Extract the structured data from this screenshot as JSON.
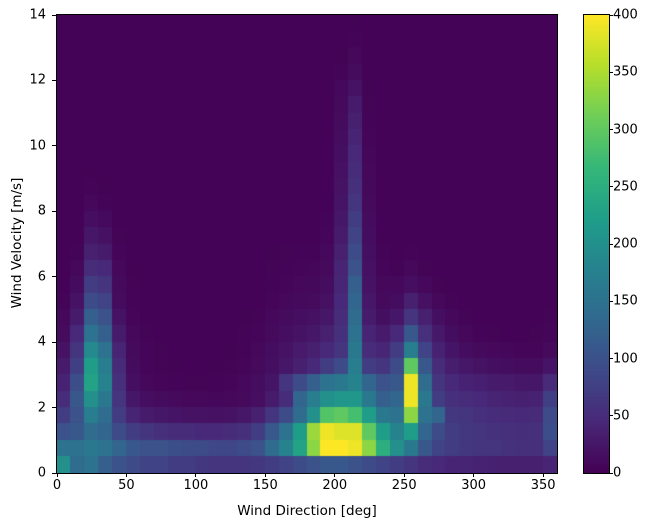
{
  "chart_data": {
    "type": "heatmap",
    "title": "",
    "xlabel": "Wind Direction [deg]",
    "ylabel": "Wind Velocity [m/s]",
    "xlim": [
      0,
      360
    ],
    "ylim": [
      0,
      14
    ],
    "xticks": [
      0,
      50,
      100,
      150,
      200,
      250,
      300,
      350
    ],
    "yticks": [
      0,
      2,
      4,
      6,
      8,
      10,
      12,
      14
    ],
    "grid_on": false,
    "colormap": "viridis",
    "colormap_stops": [
      "#440154",
      "#482878",
      "#3e4a89",
      "#31688e",
      "#26828e",
      "#1f9e89",
      "#35b779",
      "#6ece58",
      "#b5de2b",
      "#fde725"
    ],
    "colorbar": {
      "vmin": 0,
      "vmax": 400,
      "ticks": [
        0,
        50,
        100,
        150,
        200,
        250,
        300,
        350,
        400
      ],
      "position": "right"
    },
    "x_bin_width_deg": 10,
    "y_bin_height_ms": 0.5,
    "counts_rows_top_to_bottom": [
      [
        2,
        2,
        2,
        2,
        2,
        2,
        2,
        2,
        2,
        2,
        2,
        2,
        2,
        2,
        2,
        2,
        2,
        2,
        2,
        2,
        2,
        3,
        2,
        2,
        2,
        2,
        2,
        2,
        2,
        2,
        2,
        2,
        2,
        2,
        2,
        2
      ],
      [
        2,
        2,
        2,
        2,
        2,
        2,
        2,
        2,
        2,
        2,
        2,
        2,
        2,
        2,
        2,
        2,
        2,
        2,
        2,
        2,
        2,
        5,
        2,
        2,
        2,
        2,
        2,
        2,
        2,
        2,
        2,
        2,
        2,
        2,
        2,
        2
      ],
      [
        2,
        2,
        2,
        2,
        2,
        2,
        2,
        2,
        2,
        2,
        2,
        2,
        2,
        2,
        2,
        2,
        2,
        2,
        2,
        2,
        3,
        8,
        2,
        2,
        2,
        2,
        2,
        2,
        2,
        2,
        2,
        2,
        2,
        2,
        2,
        2
      ],
      [
        2,
        2,
        2,
        2,
        2,
        2,
        2,
        2,
        2,
        2,
        2,
        2,
        2,
        2,
        2,
        2,
        2,
        2,
        2,
        2,
        5,
        12,
        2,
        2,
        2,
        2,
        2,
        2,
        2,
        2,
        2,
        2,
        2,
        2,
        2,
        2
      ],
      [
        2,
        2,
        2,
        2,
        2,
        2,
        2,
        2,
        2,
        2,
        2,
        2,
        2,
        2,
        2,
        2,
        2,
        2,
        2,
        2,
        8,
        20,
        3,
        2,
        2,
        2,
        2,
        2,
        2,
        2,
        2,
        2,
        2,
        2,
        2,
        2
      ],
      [
        2,
        2,
        2,
        2,
        2,
        2,
        2,
        2,
        2,
        2,
        2,
        2,
        2,
        2,
        2,
        2,
        2,
        2,
        2,
        2,
        10,
        30,
        4,
        2,
        2,
        2,
        2,
        2,
        2,
        2,
        2,
        2,
        2,
        2,
        2,
        2
      ],
      [
        2,
        2,
        2,
        2,
        2,
        2,
        2,
        2,
        2,
        2,
        2,
        2,
        2,
        2,
        2,
        2,
        2,
        2,
        2,
        2,
        12,
        35,
        5,
        2,
        2,
        2,
        2,
        2,
        2,
        2,
        2,
        2,
        2,
        2,
        2,
        2
      ],
      [
        2,
        2,
        2,
        2,
        2,
        2,
        2,
        2,
        2,
        2,
        2,
        2,
        2,
        2,
        2,
        2,
        2,
        2,
        2,
        2,
        14,
        40,
        6,
        2,
        2,
        2,
        2,
        2,
        2,
        2,
        2,
        2,
        2,
        2,
        2,
        2
      ],
      [
        2,
        2,
        2,
        2,
        2,
        2,
        2,
        2,
        2,
        2,
        2,
        2,
        2,
        2,
        2,
        2,
        2,
        2,
        2,
        2,
        16,
        45,
        7,
        2,
        2,
        2,
        2,
        2,
        2,
        2,
        2,
        2,
        2,
        2,
        2,
        2
      ],
      [
        2,
        2,
        3,
        2,
        2,
        2,
        2,
        2,
        2,
        2,
        2,
        2,
        2,
        2,
        2,
        2,
        2,
        2,
        2,
        2,
        18,
        50,
        8,
        2,
        2,
        2,
        2,
        2,
        2,
        2,
        2,
        2,
        2,
        2,
        2,
        2
      ],
      [
        2,
        2,
        5,
        3,
        2,
        2,
        2,
        2,
        2,
        2,
        2,
        2,
        2,
        2,
        2,
        2,
        2,
        2,
        2,
        2,
        20,
        55,
        9,
        2,
        2,
        2,
        2,
        2,
        2,
        2,
        2,
        2,
        2,
        2,
        2,
        2
      ],
      [
        2,
        2,
        8,
        5,
        2,
        2,
        2,
        2,
        2,
        2,
        2,
        2,
        2,
        2,
        2,
        2,
        2,
        2,
        2,
        2,
        22,
        60,
        10,
        2,
        2,
        2,
        2,
        2,
        2,
        2,
        2,
        2,
        2,
        2,
        2,
        2
      ],
      [
        2,
        2,
        15,
        10,
        2,
        2,
        2,
        2,
        2,
        2,
        2,
        2,
        2,
        2,
        2,
        2,
        2,
        2,
        2,
        5,
        25,
        70,
        12,
        2,
        2,
        2,
        2,
        2,
        2,
        2,
        2,
        2,
        2,
        2,
        2,
        2
      ],
      [
        2,
        2,
        25,
        18,
        4,
        2,
        2,
        2,
        2,
        2,
        2,
        2,
        2,
        2,
        2,
        2,
        2,
        2,
        2,
        6,
        30,
        80,
        14,
        2,
        2,
        2,
        2,
        2,
        2,
        2,
        2,
        2,
        2,
        2,
        2,
        2
      ],
      [
        2,
        5,
        35,
        30,
        6,
        2,
        2,
        2,
        2,
        2,
        2,
        2,
        2,
        2,
        2,
        3,
        4,
        5,
        5,
        8,
        35,
        90,
        16,
        5,
        2,
        5,
        2,
        2,
        2,
        2,
        2,
        2,
        2,
        2,
        2,
        2
      ],
      [
        2,
        8,
        50,
        45,
        8,
        3,
        2,
        2,
        2,
        2,
        2,
        2,
        2,
        2,
        2,
        4,
        5,
        6,
        7,
        10,
        40,
        100,
        18,
        6,
        4,
        8,
        4,
        2,
        2,
        2,
        2,
        2,
        2,
        2,
        2,
        2
      ],
      [
        2,
        12,
        70,
        60,
        10,
        4,
        2,
        2,
        2,
        2,
        2,
        2,
        2,
        2,
        2,
        5,
        6,
        8,
        9,
        14,
        42,
        120,
        20,
        8,
        8,
        15,
        8,
        4,
        2,
        2,
        2,
        2,
        2,
        2,
        2,
        2
      ],
      [
        5,
        20,
        90,
        80,
        12,
        5,
        2,
        2,
        2,
        2,
        2,
        2,
        2,
        2,
        2,
        6,
        8,
        10,
        12,
        18,
        45,
        130,
        25,
        10,
        14,
        35,
        18,
        8,
        4,
        2,
        2,
        2,
        2,
        2,
        2,
        2
      ],
      [
        8,
        30,
        120,
        100,
        20,
        6,
        2,
        2,
        2,
        2,
        2,
        2,
        2,
        3,
        4,
        8,
        12,
        15,
        18,
        25,
        50,
        140,
        30,
        16,
        25,
        60,
        35,
        16,
        8,
        4,
        2,
        2,
        2,
        2,
        2,
        4
      ],
      [
        12,
        45,
        150,
        120,
        30,
        8,
        4,
        2,
        2,
        2,
        2,
        2,
        2,
        4,
        6,
        10,
        15,
        20,
        25,
        35,
        55,
        150,
        40,
        28,
        45,
        110,
        55,
        26,
        14,
        8,
        5,
        4,
        2,
        2,
        4,
        6
      ],
      [
        20,
        60,
        190,
        150,
        40,
        10,
        6,
        4,
        2,
        2,
        2,
        2,
        3,
        5,
        8,
        14,
        20,
        28,
        35,
        45,
        60,
        160,
        50,
        42,
        70,
        170,
        80,
        38,
        22,
        14,
        10,
        8,
        7,
        6,
        6,
        10
      ],
      [
        28,
        75,
        220,
        170,
        48,
        12,
        6,
        4,
        3,
        2,
        2,
        3,
        4,
        6,
        10,
        16,
        25,
        35,
        45,
        70,
        90,
        170,
        70,
        60,
        90,
        300,
        110,
        50,
        32,
        25,
        20,
        16,
        14,
        12,
        12,
        22
      ],
      [
        38,
        95,
        230,
        180,
        55,
        15,
        8,
        6,
        5,
        4,
        4,
        5,
        6,
        8,
        14,
        22,
        60,
        90,
        120,
        150,
        160,
        180,
        130,
        100,
        110,
        390,
        140,
        60,
        44,
        38,
        34,
        30,
        28,
        25,
        25,
        48
      ],
      [
        50,
        110,
        200,
        160,
        60,
        25,
        15,
        12,
        10,
        8,
        8,
        7,
        8,
        10,
        15,
        30,
        50,
        130,
        170,
        200,
        210,
        210,
        160,
        120,
        130,
        390,
        160,
        70,
        55,
        50,
        45,
        40,
        38,
        35,
        38,
        75
      ],
      [
        70,
        100,
        170,
        140,
        70,
        40,
        30,
        25,
        22,
        20,
        20,
        18,
        20,
        25,
        35,
        60,
        90,
        140,
        200,
        290,
        300,
        280,
        220,
        160,
        150,
        330,
        150,
        130,
        65,
        60,
        55,
        50,
        48,
        45,
        48,
        90
      ],
      [
        100,
        110,
        140,
        130,
        90,
        70,
        60,
        55,
        50,
        50,
        45,
        45,
        50,
        55,
        70,
        110,
        150,
        220,
        340,
        390,
        380,
        380,
        300,
        220,
        180,
        220,
        130,
        90,
        70,
        65,
        60,
        58,
        55,
        52,
        55,
        95
      ],
      [
        150,
        150,
        160,
        150,
        130,
        110,
        100,
        100,
        95,
        90,
        90,
        85,
        85,
        90,
        100,
        140,
        180,
        230,
        330,
        400,
        400,
        390,
        330,
        250,
        200,
        160,
        110,
        80,
        70,
        65,
        60,
        60,
        58,
        55,
        55,
        80
      ],
      [
        200,
        140,
        150,
        120,
        100,
        90,
        80,
        80,
        70,
        70,
        65,
        60,
        60,
        60,
        65,
        70,
        80,
        90,
        100,
        110,
        110,
        100,
        90,
        80,
        70,
        60,
        50,
        45,
        40,
        40,
        38,
        36,
        35,
        35,
        35,
        40
      ]
    ]
  }
}
